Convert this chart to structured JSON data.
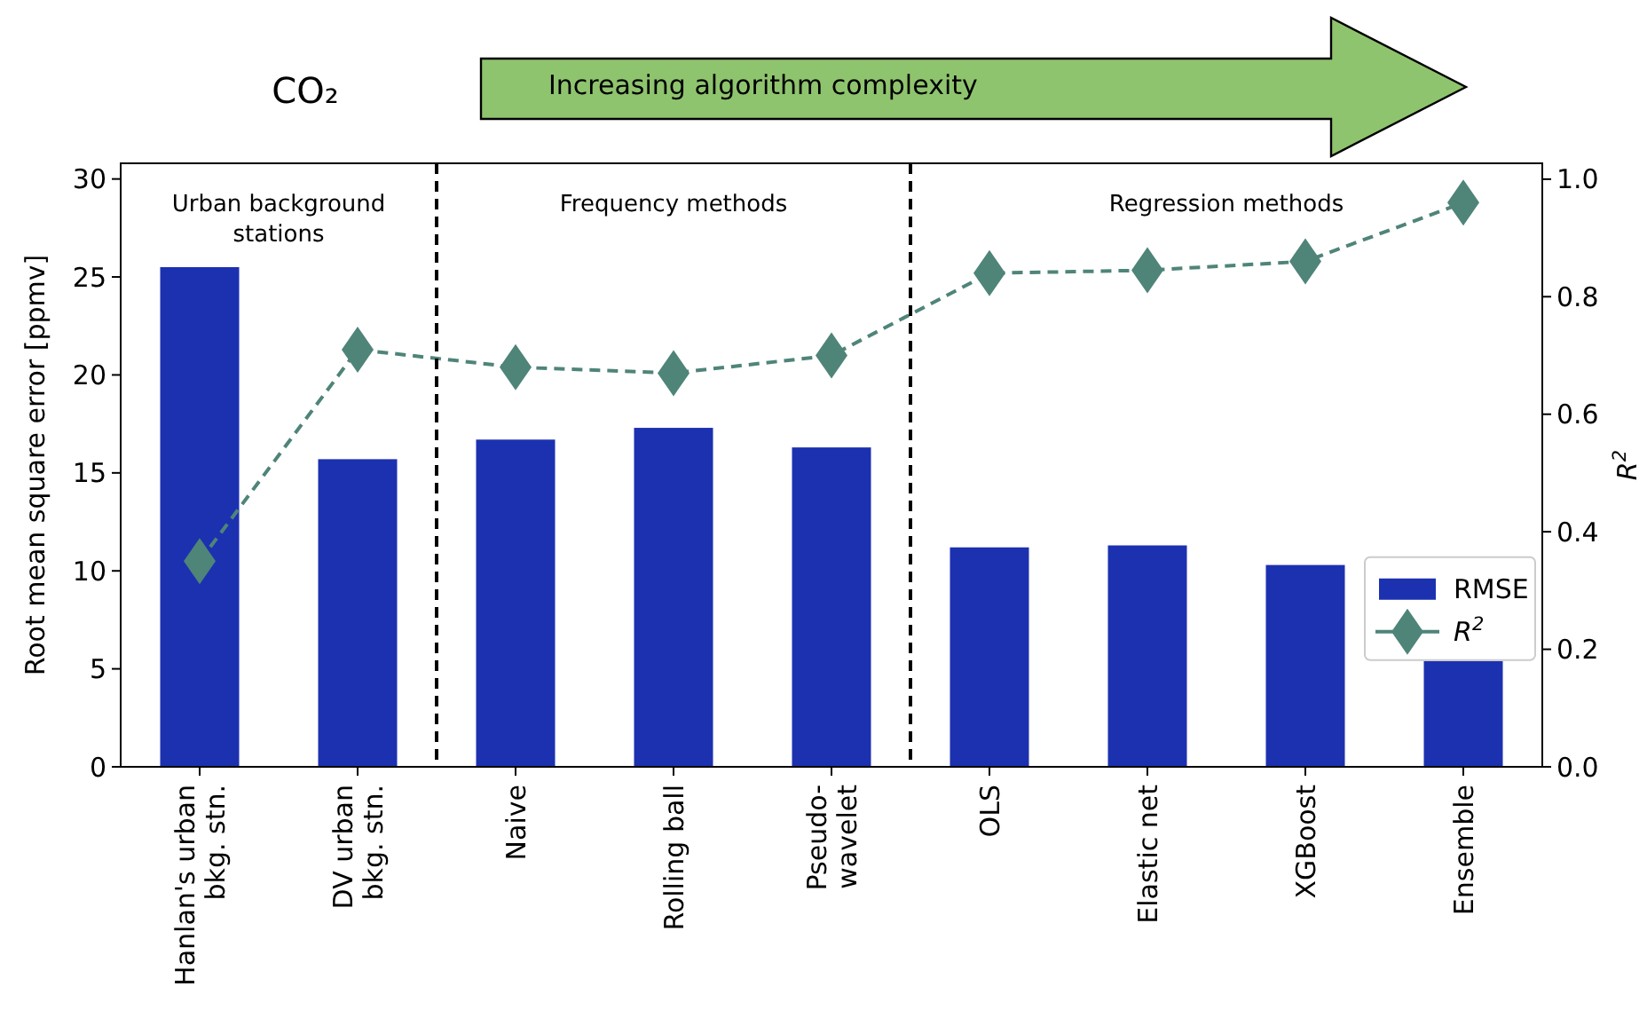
{
  "chart_data": {
    "type": "bar",
    "title": "CO₂",
    "ylabel": "Root mean square error [ppmv]",
    "y2label": "R$^{2}$",
    "categories": [
      "Hanlan's urban\nbkg. stn.",
      "DV urban\nbkg. stn.",
      "Naive",
      "Rolling ball",
      "Pseudo-\nwavelet",
      "OLS",
      "Elastic net",
      "XGBoost",
      "Ensemble"
    ],
    "series": [
      {
        "name": "RMSE",
        "color": "#1c31b0",
        "values": [
          25.5,
          15.7,
          16.7,
          17.3,
          16.3,
          11.2,
          11.3,
          10.3,
          5.4
        ]
      },
      {
        "name": "R$^{2}$",
        "type": "line",
        "axis": "y2",
        "color": "#4f8479",
        "marker": "diamond",
        "line_style": "dashed",
        "values": [
          0.35,
          0.71,
          0.68,
          0.67,
          0.7,
          0.84,
          0.845,
          0.86,
          0.96
        ]
      }
    ],
    "ylim": [
      0,
      30.8
    ],
    "yticks": [
      0,
      5,
      10,
      15,
      20,
      25,
      30
    ],
    "y2lim": [
      0,
      1.027
    ],
    "y2ticks": [
      {
        "value": 0,
        "label": "0.0"
      },
      {
        "value": 0.2,
        "label": "0.2"
      },
      {
        "value": 0.4,
        "label": "0.4"
      },
      {
        "value": 0.6,
        "label": "0.6"
      },
      {
        "value": 0.8,
        "label": "0.8"
      },
      {
        "value": 1,
        "label": "1.0"
      }
    ],
    "annotations": [
      "Urban background\nstations",
      "Frequency methods",
      "Regression methods",
      "Increasing algorithm complexity"
    ],
    "legend": "right",
    "grid": false
  }
}
